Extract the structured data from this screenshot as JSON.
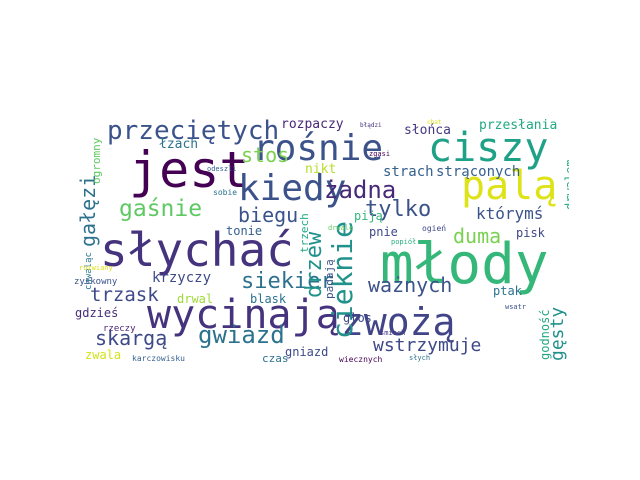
{
  "wordcloud": {
    "words": [
      {
        "text": "młody",
        "color": "#35b779"
      },
      {
        "text": "słychać",
        "color": "#46337e"
      },
      {
        "text": "jest",
        "color": "#440154"
      },
      {
        "text": "rośnie",
        "color": "#3b528b"
      },
      {
        "text": "ciszy",
        "color": "#1fa187"
      },
      {
        "text": "wycinają",
        "color": "#46337e"
      },
      {
        "text": "zwożą",
        "color": "#414487"
      },
      {
        "text": "palą",
        "color": "#dde318"
      },
      {
        "text": "kiedy",
        "color": "#3b528b"
      },
      {
        "text": "przeciętych",
        "color": "#3b528b"
      },
      {
        "text": "cieknie",
        "color": "#21918c"
      },
      {
        "text": "żadna",
        "color": "#482878"
      },
      {
        "text": "gaśnie",
        "color": "#5ec962"
      },
      {
        "text": "gwiazd",
        "color": "#2c728e"
      },
      {
        "text": "tylko",
        "color": "#3b528b"
      },
      {
        "text": "siekier",
        "color": "#2c728e"
      },
      {
        "text": "ważnych",
        "color": "#3b528b"
      },
      {
        "text": "stos",
        "color": "#7ad151"
      },
      {
        "text": "biegu",
        "color": "#3b528b"
      },
      {
        "text": "gałęzi",
        "color": "#2c728e"
      },
      {
        "text": "drzew",
        "color": "#21918c"
      },
      {
        "text": "duma",
        "color": "#7ad151"
      },
      {
        "text": "skargą",
        "color": "#3e4989"
      },
      {
        "text": "trzask",
        "color": "#3e4989"
      },
      {
        "text": "wstrzymuje",
        "color": "#3e4989"
      },
      {
        "text": "gęsty",
        "color": "#21918c"
      },
      {
        "text": "którymś",
        "color": "#3b528b"
      },
      {
        "text": "strach",
        "color": "#355f8d"
      },
      {
        "text": "strąconych",
        "color": "#355f8d"
      },
      {
        "text": "krzyczy",
        "color": "#3e4989"
      },
      {
        "text": "rozpaczy",
        "color": "#482878"
      },
      {
        "text": "słońca",
        "color": "#443983"
      },
      {
        "text": "przesłania",
        "color": "#22a884"
      },
      {
        "text": "drwalem",
        "color": "#29af7f"
      },
      {
        "text": "łzach",
        "color": "#2c728e"
      },
      {
        "text": "nikt",
        "color": "#b5de2b"
      },
      {
        "text": "piją",
        "color": "#35b779"
      },
      {
        "text": "pnie",
        "color": "#3e4989"
      },
      {
        "text": "pisk",
        "color": "#404688"
      },
      {
        "text": "ptak",
        "color": "#2c728e"
      },
      {
        "text": "tonie",
        "color": "#355f8d"
      },
      {
        "text": "drwal",
        "color": "#a0da39"
      },
      {
        "text": "blask",
        "color": "#2c728e"
      },
      {
        "text": "głos",
        "color": "#3e4989"
      },
      {
        "text": "gdzieś",
        "color": "#472d7b"
      },
      {
        "text": "gniazd",
        "color": "#3e4989"
      },
      {
        "text": "godność",
        "color": "#22a884"
      },
      {
        "text": "zwala",
        "color": "#d2e21b"
      },
      {
        "text": "czas",
        "color": "#2c728e"
      },
      {
        "text": "trzech",
        "color": "#22a884"
      },
      {
        "text": "ogromny",
        "color": "#5ec962"
      },
      {
        "text": "padają",
        "color": "#3b528b"
      },
      {
        "text": "chwaląc",
        "color": "#2a788e"
      },
      {
        "text": "zyskowny",
        "color": "#3b528b"
      },
      {
        "text": "rzeczy",
        "color": "#482878"
      },
      {
        "text": "karczowisku",
        "color": "#355f8d"
      },
      {
        "text": "wiecznych",
        "color": "#440154"
      },
      {
        "text": "śmiech",
        "color": "#443983"
      },
      {
        "text": "słych",
        "color": "#2c728e"
      },
      {
        "text": "wsatr",
        "color": "#3b528b"
      },
      {
        "text": "ogień",
        "color": "#3e4989"
      },
      {
        "text": "popiół",
        "color": "#29af7f"
      },
      {
        "text": "drwale",
        "color": "#5ec962"
      },
      {
        "text": "sobie",
        "color": "#2c728e"
      },
      {
        "text": "odeszli",
        "color": "#355f8d"
      },
      {
        "text": "zgasi",
        "color": "#440154"
      },
      {
        "text": "chat",
        "color": "#dde318"
      },
      {
        "text": "błądzi",
        "color": "#46337e"
      },
      {
        "text": "rozwiany",
        "color": "#dde318"
      }
    ]
  }
}
